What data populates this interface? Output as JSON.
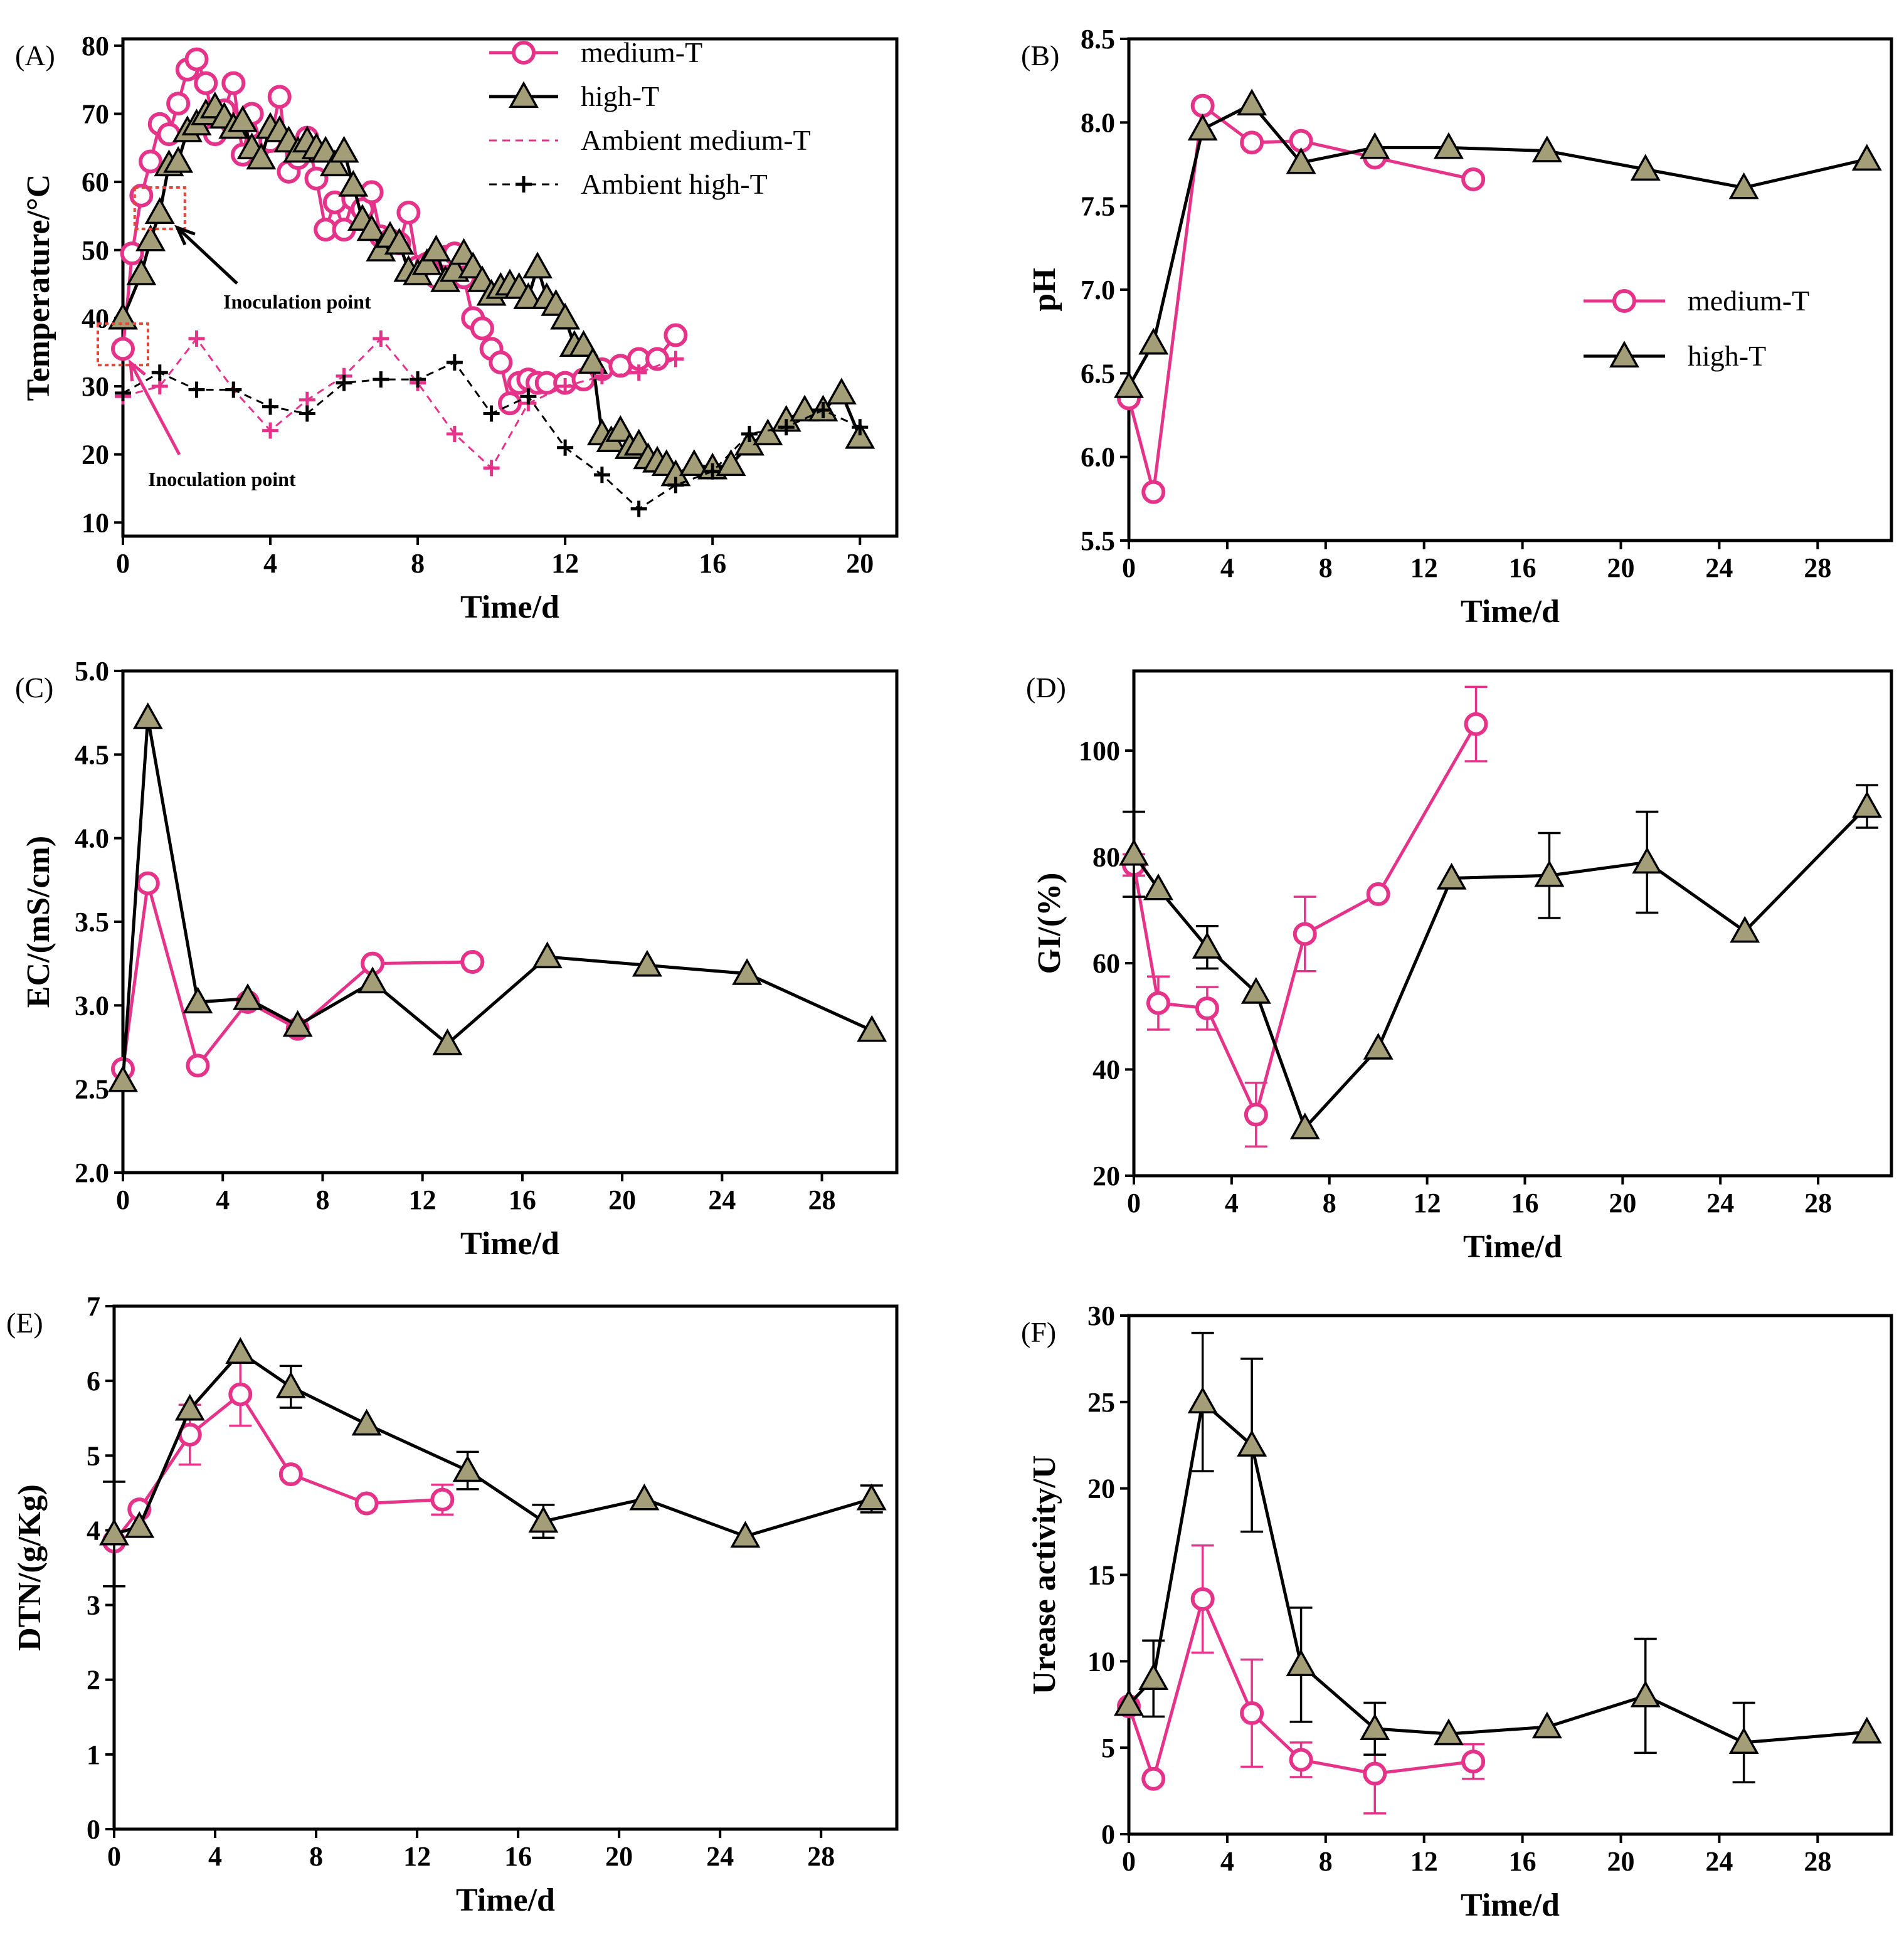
{
  "colors": {
    "medium": "#e6338a",
    "high": "#000000",
    "triangle_fill": "#a39e78",
    "inoculation_box": "#e0493a",
    "inoculation_arrow_medium": "#e6338a",
    "inoculation_arrow_high": "#000000"
  },
  "chart_data": [
    {
      "type": "line",
      "panel": "(A)",
      "xlabel": "Time/d",
      "ylabel": "Temperature/°C",
      "xlim": [
        0,
        21
      ],
      "ylim": [
        8,
        81
      ],
      "xticks": [
        0,
        4,
        8,
        12,
        16,
        20
      ],
      "yticks": [
        10,
        20,
        30,
        40,
        50,
        60,
        70,
        80
      ],
      "legend": {
        "position": "top-right",
        "entries": [
          "medium-T",
          "high-T",
          "Ambient medium-T",
          "Ambient high-T"
        ]
      },
      "annotations": [
        {
          "text": "Inoculation point",
          "series": "high-T",
          "x": 1.0,
          "y": 55.5
        },
        {
          "text": "Inoculation point",
          "series": "medium-T",
          "x": 0.0,
          "y": 35.5
        }
      ],
      "series": [
        {
          "name": "medium-T",
          "marker": "circle",
          "line": "solid",
          "x": [
            0,
            0.25,
            0.5,
            0.75,
            1,
            1.25,
            1.5,
            1.75,
            2,
            2.25,
            2.5,
            2.75,
            3,
            3.25,
            3.5,
            3.75,
            4,
            4.25,
            4.5,
            4.75,
            5,
            5.25,
            5.5,
            5.75,
            6,
            6.25,
            6.5,
            6.75,
            7,
            7.25,
            7.5,
            7.75,
            8,
            8.25,
            8.5,
            8.75,
            9,
            9.25,
            9.5,
            9.75,
            10,
            10.25,
            10.5,
            10.75,
            11,
            11.25,
            11.5,
            12,
            12.5,
            13,
            13.5,
            14,
            14.5,
            15
          ],
          "y": [
            35.5,
            49.5,
            58,
            63,
            68.5,
            67,
            71.5,
            76.5,
            78,
            74.5,
            67,
            70.5,
            74.5,
            64,
            70,
            65.5,
            66,
            72.5,
            61.5,
            63.5,
            66.5,
            60.5,
            53,
            57,
            53,
            57.5,
            56,
            58.5,
            52,
            51.5,
            51,
            55.5,
            47.5,
            48,
            46,
            49,
            49.5,
            46,
            40,
            38.5,
            35.5,
            33.5,
            27.5,
            30.5,
            31,
            30.5,
            30.5,
            30.5,
            31,
            32.5,
            33,
            34,
            34,
            37.5
          ]
        },
        {
          "name": "high-T",
          "marker": "triangle",
          "line": "solid",
          "x": [
            0,
            0.5,
            0.75,
            1,
            1.25,
            1.5,
            1.75,
            2,
            2.25,
            2.5,
            2.75,
            3,
            3.25,
            3.5,
            3.75,
            4,
            4.25,
            4.5,
            4.75,
            5,
            5.25,
            5.5,
            5.75,
            6,
            6.25,
            6.5,
            6.75,
            7,
            7.25,
            7.5,
            7.75,
            8,
            8.25,
            8.5,
            8.75,
            9,
            9.25,
            9.5,
            9.75,
            10,
            10.25,
            10.5,
            10.75,
            11,
            11.25,
            11.5,
            11.75,
            12,
            12.25,
            12.5,
            12.75,
            13,
            13.25,
            13.5,
            13.75,
            14,
            14.25,
            14.5,
            14.75,
            15,
            15.5,
            16,
            16.5,
            17,
            17.5,
            18,
            18.5,
            19,
            19.5,
            20
          ],
          "y": [
            40,
            46.5,
            51.5,
            55.5,
            62.5,
            63,
            67.5,
            68.5,
            70,
            71,
            69.5,
            68,
            69,
            65,
            63.5,
            68,
            67.5,
            66,
            64.5,
            66,
            65,
            64.5,
            62.5,
            64.5,
            59.5,
            54.5,
            53,
            50,
            52,
            51,
            47,
            46.5,
            48,
            50,
            45.5,
            47,
            49.5,
            47.5,
            45.5,
            43.5,
            44.5,
            45,
            44.5,
            43,
            47.5,
            43,
            42,
            40,
            36,
            36,
            33.5,
            23,
            22,
            23.5,
            21,
            21.5,
            19.5,
            19,
            18.5,
            17,
            18.5,
            18,
            18.5,
            21.5,
            23,
            25,
            26.5,
            26.5,
            29,
            22.5
          ]
        },
        {
          "name": "Ambient medium-T",
          "marker": "plus",
          "line": "dashed",
          "x": [
            0,
            1,
            2,
            3,
            4,
            5,
            6,
            7,
            8,
            9,
            10,
            11,
            12,
            13,
            14,
            15
          ],
          "y": [
            28.5,
            30,
            37,
            29.5,
            23.5,
            28,
            31.5,
            37,
            30.5,
            23,
            18,
            27.5,
            30,
            31.5,
            32,
            34
          ]
        },
        {
          "name": "Ambient high-T",
          "marker": "plus",
          "line": "dashed",
          "x": [
            0,
            1,
            2,
            3,
            4,
            5,
            6,
            7,
            8,
            9,
            10,
            11,
            12,
            13,
            14,
            15,
            16,
            17,
            18,
            19,
            20
          ],
          "y": [
            29,
            32,
            29.5,
            29.5,
            27,
            26,
            30.5,
            31,
            31,
            33.5,
            26,
            28.5,
            21,
            17,
            12,
            15.5,
            17.5,
            23,
            24,
            26.5,
            24
          ]
        }
      ]
    },
    {
      "type": "line",
      "panel": "(B)",
      "xlabel": "Time/d",
      "ylabel": "pH",
      "xlim": [
        0,
        31
      ],
      "ylim": [
        5.5,
        8.5
      ],
      "xticks": [
        0,
        4,
        8,
        12,
        16,
        20,
        24,
        28
      ],
      "yticks": [
        5.5,
        6.0,
        6.5,
        7.0,
        7.5,
        8.0,
        8.5
      ],
      "legend": {
        "position": "center-right",
        "entries": [
          "medium-T",
          "high-T"
        ]
      },
      "series": [
        {
          "name": "medium-T",
          "marker": "circle",
          "x": [
            0,
            1,
            3,
            5,
            7,
            10,
            14
          ],
          "y": [
            6.35,
            5.79,
            8.1,
            7.88,
            7.89,
            7.79,
            7.66
          ]
        },
        {
          "name": "high-T",
          "marker": "triangle",
          "x": [
            0,
            1,
            3,
            5,
            7,
            10,
            13,
            17,
            21,
            25,
            30
          ],
          "y": [
            6.42,
            6.68,
            7.96,
            8.11,
            7.76,
            7.85,
            7.85,
            7.83,
            7.72,
            7.61,
            7.78
          ]
        }
      ]
    },
    {
      "type": "line",
      "panel": "(C)",
      "xlabel": "Time/d",
      "ylabel": "EC/(mS/cm)",
      "xlim": [
        0,
        31
      ],
      "ylim": [
        2.0,
        5.0
      ],
      "xticks": [
        0,
        4,
        8,
        12,
        16,
        20,
        24,
        28
      ],
      "yticks": [
        2.0,
        2.5,
        3.0,
        3.5,
        4.0,
        4.5,
        5.0
      ],
      "series": [
        {
          "name": "medium-T",
          "marker": "circle",
          "x": [
            0,
            1,
            3,
            5,
            7,
            10,
            14
          ],
          "y": [
            2.62,
            3.73,
            2.64,
            3.02,
            2.86,
            3.25,
            3.26
          ]
        },
        {
          "name": "high-T",
          "marker": "triangle",
          "x": [
            0,
            1,
            3,
            5,
            7,
            10,
            13,
            17,
            21,
            25,
            30
          ],
          "y": [
            2.55,
            4.72,
            3.02,
            3.04,
            2.88,
            3.14,
            2.77,
            3.29,
            3.24,
            3.19,
            2.85
          ]
        }
      ]
    },
    {
      "type": "line",
      "panel": "(D)",
      "xlabel": "Time/d",
      "ylabel": "GI/(%)",
      "xlim": [
        0,
        31
      ],
      "ylim": [
        20,
        115
      ],
      "xticks": [
        0,
        4,
        8,
        12,
        16,
        20,
        24,
        28
      ],
      "yticks": [
        20,
        40,
        60,
        80,
        100
      ],
      "series": [
        {
          "name": "medium-T",
          "marker": "circle",
          "x": [
            0,
            1,
            3,
            5,
            7,
            10,
            14
          ],
          "y": [
            78.5,
            52.5,
            51.5,
            31.5,
            65.5,
            73,
            105
          ],
          "err": [
            2,
            5,
            4,
            6,
            7,
            0,
            7
          ]
        },
        {
          "name": "high-T",
          "marker": "triangle",
          "x": [
            0,
            1,
            3,
            5,
            7,
            10,
            13,
            17,
            21,
            25,
            30
          ],
          "y": [
            80.5,
            74,
            63,
            54.5,
            29,
            44,
            76,
            76.5,
            79,
            66,
            89.5
          ],
          "err": [
            8,
            0,
            4,
            0,
            0,
            0,
            0,
            8,
            9.5,
            0,
            4
          ]
        }
      ]
    },
    {
      "type": "line",
      "panel": "(E)",
      "xlabel": "Time/d",
      "ylabel": "DTN/(g/Kg)",
      "xlim": [
        0,
        31
      ],
      "ylim": [
        0,
        7
      ],
      "xticks": [
        0,
        4,
        8,
        12,
        16,
        20,
        24,
        28
      ],
      "yticks": [
        0,
        1,
        2,
        3,
        4,
        5,
        6,
        7
      ],
      "series": [
        {
          "name": "medium-T",
          "marker": "circle",
          "x": [
            0,
            1,
            3,
            5,
            7,
            10,
            13
          ],
          "y": [
            3.85,
            4.28,
            5.28,
            5.82,
            4.75,
            4.36,
            4.41
          ],
          "err": [
            0,
            0,
            0.4,
            0.42,
            0,
            0,
            0.2
          ]
        },
        {
          "name": "high-T",
          "marker": "triangle",
          "x": [
            0,
            1,
            3,
            5,
            7,
            10,
            14,
            17,
            21,
            25,
            30
          ],
          "y": [
            3.95,
            4.05,
            5.62,
            6.38,
            5.92,
            5.42,
            4.8,
            4.12,
            4.42,
            3.92,
            4.42
          ],
          "err": [
            0.7,
            0,
            0,
            0,
            0.28,
            0,
            0.25,
            0.22,
            0,
            0,
            0.18
          ]
        }
      ]
    },
    {
      "type": "line",
      "panel": "(F)",
      "xlabel": "Time/d",
      "ylabel": "Urease activity/U",
      "xlim": [
        0,
        31
      ],
      "ylim": [
        0,
        30
      ],
      "xticks": [
        0,
        4,
        8,
        12,
        16,
        20,
        24,
        28
      ],
      "yticks": [
        0,
        5,
        10,
        15,
        20,
        25,
        30
      ],
      "series": [
        {
          "name": "medium-T",
          "marker": "circle",
          "x": [
            0,
            1,
            3,
            5,
            7,
            10,
            14
          ],
          "y": [
            7.4,
            3.2,
            13.6,
            7.0,
            4.3,
            3.5,
            4.2
          ],
          "err": [
            0,
            0,
            3.1,
            3.1,
            1.0,
            2.3,
            1.0
          ]
        },
        {
          "name": "high-T",
          "marker": "triangle",
          "x": [
            0,
            1,
            3,
            5,
            7,
            10,
            13,
            17,
            21,
            25,
            30
          ],
          "y": [
            7.5,
            9.0,
            25.0,
            22.5,
            9.8,
            6.1,
            5.8,
            6.2,
            8.0,
            5.3,
            5.9
          ],
          "err": [
            0,
            2.2,
            4.0,
            5.0,
            3.3,
            1.5,
            0,
            0,
            3.3,
            2.3,
            0
          ]
        }
      ]
    }
  ]
}
